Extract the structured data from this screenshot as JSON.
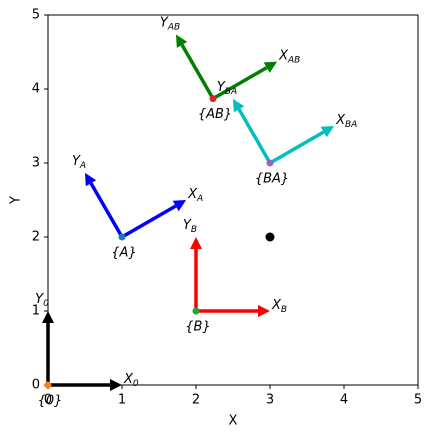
{
  "chart_data": {
    "type": "frames",
    "x_label": "X",
    "y_label": "Y",
    "xlim": [
      0,
      5
    ],
    "ylim": [
      0,
      5
    ],
    "xticks": [
      0,
      1,
      2,
      3,
      4,
      5
    ],
    "yticks": [
      0,
      1,
      2,
      3,
      4,
      5
    ],
    "frames": [
      {
        "name": "{0}",
        "x_axis_label": [
          "X",
          "0"
        ],
        "y_axis_label": [
          "Y",
          "0"
        ],
        "color": "#000000",
        "dot_color": "#ff7f0e",
        "origin": [
          0,
          0
        ],
        "angle": 0,
        "length": 1
      },
      {
        "name": "{A}",
        "x_axis_label": [
          "X",
          "A"
        ],
        "y_axis_label": [
          "Y",
          "A"
        ],
        "color": "#0000ff",
        "dot_color": "#1f77b4",
        "origin": [
          1,
          2
        ],
        "angle": 30,
        "length": 1
      },
      {
        "name": "{B}",
        "x_axis_label": [
          "X",
          "B"
        ],
        "y_axis_label": [
          "Y",
          "B"
        ],
        "color": "#ff0000",
        "dot_color": "#2ca02c",
        "origin": [
          2,
          1
        ],
        "angle": 0,
        "length": 1
      },
      {
        "name": "{AB}",
        "x_axis_label": [
          "X",
          "AB"
        ],
        "y_axis_label": [
          "Y",
          "AB"
        ],
        "color": "#008000",
        "dot_color": "#d62728",
        "origin": [
          2.23,
          3.87
        ],
        "angle": 30,
        "length": 1
      },
      {
        "name": "{BA}",
        "x_axis_label": [
          "X",
          "BA"
        ],
        "y_axis_label": [
          "Y",
          "BA"
        ],
        "color": "#00bfbf",
        "dot_color": "#9467bd",
        "origin": [
          3,
          3
        ],
        "angle": 30,
        "length": 1
      }
    ],
    "points": [
      {
        "x": 3,
        "y": 2,
        "color": "#000000"
      }
    ]
  }
}
